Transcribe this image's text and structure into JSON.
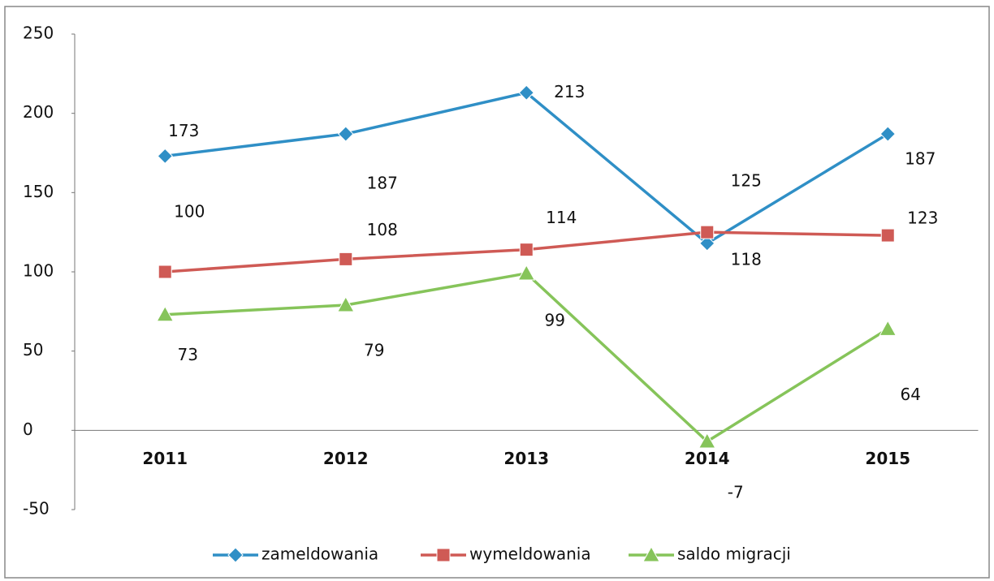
{
  "chart_data": {
    "type": "line",
    "categories": [
      "2011",
      "2012",
      "2013",
      "2014",
      "2015"
    ],
    "series": [
      {
        "name": "zameldowania",
        "color": "#2f8fc6",
        "marker": "diamond",
        "values": [
          173,
          187,
          213,
          118,
          187
        ]
      },
      {
        "name": "wymeldowania",
        "color": "#cf5a55",
        "marker": "square",
        "values": [
          100,
          108,
          114,
          125,
          123
        ]
      },
      {
        "name": "saldo migracji",
        "color": "#86c45a",
        "marker": "triangle",
        "values": [
          73,
          79,
          99,
          -7,
          64
        ]
      }
    ],
    "ylim": [
      -50,
      250
    ],
    "yticks": [
      -50,
      0,
      50,
      100,
      150,
      200,
      250
    ],
    "legend": "bottom",
    "grid": false
  }
}
